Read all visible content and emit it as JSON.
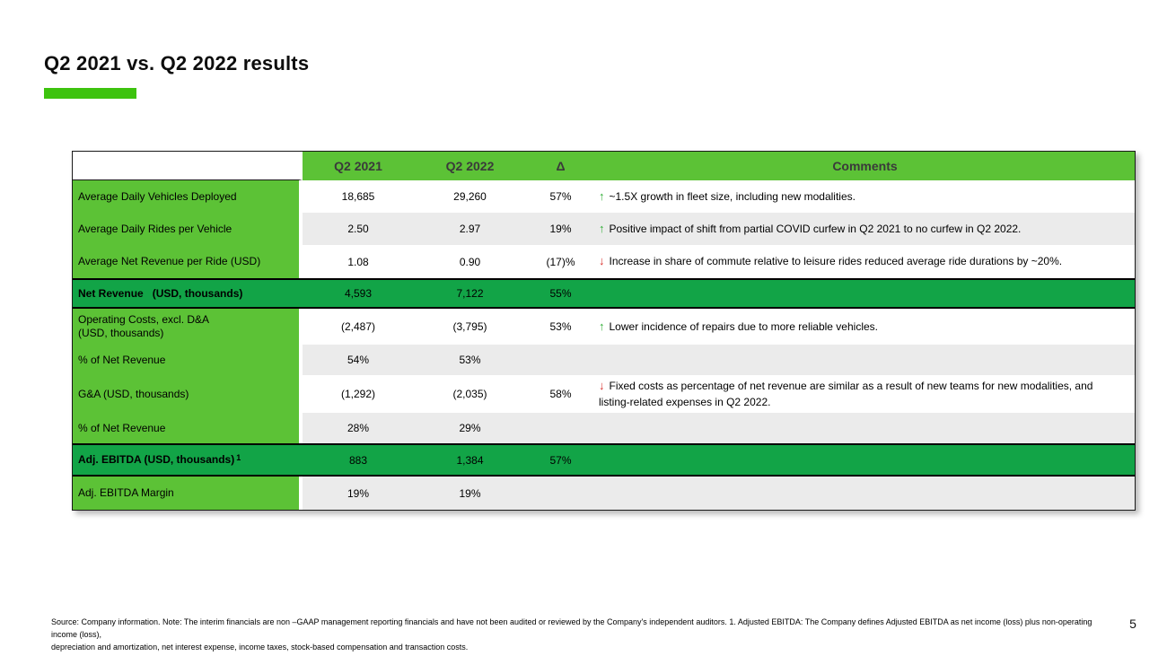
{
  "slide": {
    "title": "Q2 2021 vs. Q2 2022 results",
    "page_number": "5",
    "footnote_line1": "Source: Company information. Note: The interim financials are non –GAAP management reporting financials and have not been audited or reviewed by the Company's independent auditors. 1. Adjusted EBITDA: The Company defines Adjusted EBITDA as net income (loss) plus non-operating income (loss),",
    "footnote_line2": "depreciation and amortization, net interest expense, income taxes, stock-based compensation and transaction costs."
  },
  "colors": {
    "accent_green": "#3dc30e",
    "header_green": "#5cc236",
    "highlight_green": "#12a447",
    "row_alt_gray": "#ebebeb",
    "header_text": "#3a3a3a",
    "arrow_up_green": "#2fad35",
    "arrow_down_red": "#d9302c"
  },
  "table": {
    "headers": {
      "blank": "",
      "q2_2021": "Q2 2021",
      "q2_2022": "Q2 2022",
      "delta": "Δ",
      "comments": "Comments"
    },
    "rows": [
      {
        "label": "Average Daily Vehicles Deployed",
        "q2_2021": "18,685",
        "q2_2022": "29,260",
        "delta": "57%",
        "arrow": "up",
        "comment": "~1.5X growth in fleet size, including new modalities.",
        "style": "normal",
        "bg": "white"
      },
      {
        "label": "Average Daily Rides per Vehicle",
        "q2_2021": "2.50",
        "q2_2022": "2.97",
        "delta": "19%",
        "arrow": "up",
        "comment": "Positive impact of shift from partial COVID curfew in Q2 2021 to no curfew in Q2 2022.",
        "style": "normal",
        "bg": "gray"
      },
      {
        "label": "Average Net Revenue per Ride (USD)",
        "q2_2021": "1.08",
        "q2_2022": "0.90",
        "delta": "(17)%",
        "arrow": "down",
        "comment": "Increase in share of commute relative to leisure rides reduced average ride durations by ~20%.",
        "style": "normal",
        "bg": "white"
      },
      {
        "label": "Net Revenue   (USD, thousands)",
        "q2_2021": "4,593",
        "q2_2022": "7,122",
        "delta": "55%",
        "arrow": null,
        "comment": "",
        "style": "highlight",
        "bg": "green"
      },
      {
        "label": "Operating Costs, excl. D&A\n(USD, thousands)",
        "q2_2021": "(2,487)",
        "q2_2022": "(3,795)",
        "delta": "53%",
        "arrow": "up",
        "comment": "Lower incidence of repairs due to more reliable vehicles.",
        "style": "normal",
        "bg": "white"
      },
      {
        "label": "% of Net Revenue",
        "q2_2021": "54%",
        "q2_2022": "53%",
        "delta": "",
        "arrow": null,
        "comment": "",
        "style": "normal",
        "bg": "gray"
      },
      {
        "label": "G&A (USD, thousands)",
        "q2_2021": "(1,292)",
        "q2_2022": "(2,035)",
        "delta": "58%",
        "arrow": "down",
        "comment": "Fixed costs as percentage of net revenue are similar as a result of new teams for new modalities, and listing-related expenses in Q2 2022.",
        "style": "normal",
        "bg": "white"
      },
      {
        "label": "% of Net Revenue",
        "q2_2021": "28%",
        "q2_2022": "29%",
        "delta": "",
        "arrow": null,
        "comment": "",
        "style": "normal",
        "bg": "gray"
      },
      {
        "label": "Adj. EBITDA (USD, thousands)",
        "sup": "1",
        "q2_2021": "883",
        "q2_2022": "1,384",
        "delta": "57%",
        "arrow": null,
        "comment": "",
        "style": "highlight",
        "bg": "green"
      },
      {
        "label": "Adj. EBITDA Margin",
        "q2_2021": "19%",
        "q2_2022": "19%",
        "delta": "",
        "arrow": null,
        "comment": "",
        "style": "normal",
        "bg": "gray"
      }
    ]
  }
}
